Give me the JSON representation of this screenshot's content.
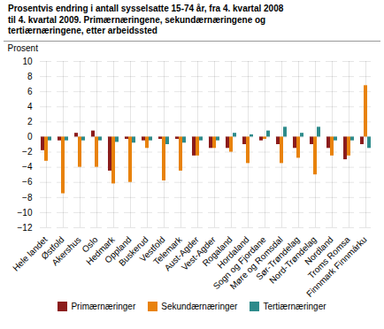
{
  "chart_data": {
    "type": "bar",
    "title": "Prosentvis endring i antall sysselsatte 15-74 år, fra 4. kvartal 2008\ntil 4. kvartal 2009. Primærnæringene, sekundærnæringene og\ntertiærnæringene, etter arbeidssted",
    "ylabel": "Prosent",
    "categories": [
      "Hele landet",
      "Østfold",
      "Akershus",
      "Oslo",
      "Hedmark",
      "Oppland",
      "Buskerud",
      "Vestfold",
      "Telemark",
      "Aust-Agder",
      "Vest-Agder",
      "Rogaland",
      "Hordaland",
      "Sogn og Fjordane",
      "Møre og Romsdal",
      "Sør-Trøndelag",
      "Nord-Trøndelag",
      "Nordland",
      "Troms Romsa",
      "Finnmark Finnmárku"
    ],
    "series": [
      {
        "name": "Primærnæringer",
        "color": "#8B1C1C",
        "values": [
          -1.8,
          -0.5,
          0.5,
          0.8,
          -4.5,
          -0.3,
          -0.5,
          -0.3,
          -0.3,
          -2.5,
          -1.5,
          -1.5,
          -1.0,
          -0.5,
          -1.0,
          -1.5,
          -1.0,
          -1.5,
          -3.0,
          -1.0
        ]
      },
      {
        "name": "Sekundærnæringer",
        "color": "#E8820C",
        "values": [
          -3.2,
          -7.5,
          -4.0,
          -4.0,
          -6.2,
          -6.0,
          -1.5,
          -5.8,
          -4.5,
          -2.5,
          -1.5,
          -2.0,
          -3.5,
          -0.3,
          -3.5,
          -2.8,
          -5.0,
          -2.5,
          -2.5,
          6.8
        ]
      },
      {
        "name": "Tertiærnæringer",
        "color": "#2E8B8B",
        "values": [
          -0.5,
          -0.5,
          -0.5,
          -0.5,
          -0.7,
          -0.8,
          -0.5,
          -1.0,
          -0.8,
          -0.5,
          -0.5,
          0.5,
          0.3,
          0.8,
          1.3,
          0.5,
          1.3,
          -0.5,
          -0.5,
          -1.5
        ]
      }
    ],
    "ylim": [
      -12,
      10
    ],
    "yticks": [
      -12,
      -10,
      -8,
      -6,
      -4,
      -2,
      0,
      2,
      4,
      6,
      8,
      10
    ],
    "grid": true,
    "legend": "bottom"
  }
}
